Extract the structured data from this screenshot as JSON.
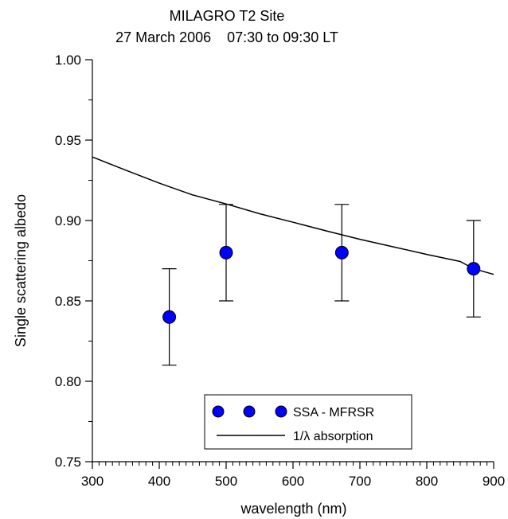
{
  "chart_data": {
    "type": "scatter",
    "title": "MILAGRO T2 Site",
    "subtitle": "27 March 2006    07:30 to 09:30 LT",
    "xlabel": "wavelength (nm)",
    "ylabel": "Single scattering albedo",
    "xlim": [
      300,
      900
    ],
    "ylim": [
      0.75,
      1.0
    ],
    "x_ticks": [
      "300",
      "400",
      "500",
      "600",
      "700",
      "800",
      "900"
    ],
    "y_ticks": [
      "0.75",
      "0.80",
      "0.85",
      "0.90",
      "0.95",
      "1.00"
    ],
    "grid": false,
    "legend_position": "bottom-center",
    "series": [
      {
        "name": "SSA - MFRSR",
        "kind": "points-with-errorbars",
        "color": "#0000ff",
        "x": [
          415,
          500,
          673,
          870
        ],
        "y": [
          0.84,
          0.88,
          0.88,
          0.87
        ],
        "error": [
          0.03,
          0.03,
          0.03,
          0.03
        ]
      },
      {
        "name": "1/λ absorption",
        "kind": "line",
        "color": "#000000",
        "x": [
          300,
          350,
          400,
          450,
          500,
          550,
          600,
          650,
          700,
          750,
          800,
          850,
          870,
          900
        ],
        "y": [
          0.9395,
          0.9313,
          0.9232,
          0.9159,
          0.9103,
          0.9042,
          0.8989,
          0.8935,
          0.8883,
          0.8836,
          0.8789,
          0.8745,
          0.87,
          0.8665
        ]
      }
    ]
  }
}
